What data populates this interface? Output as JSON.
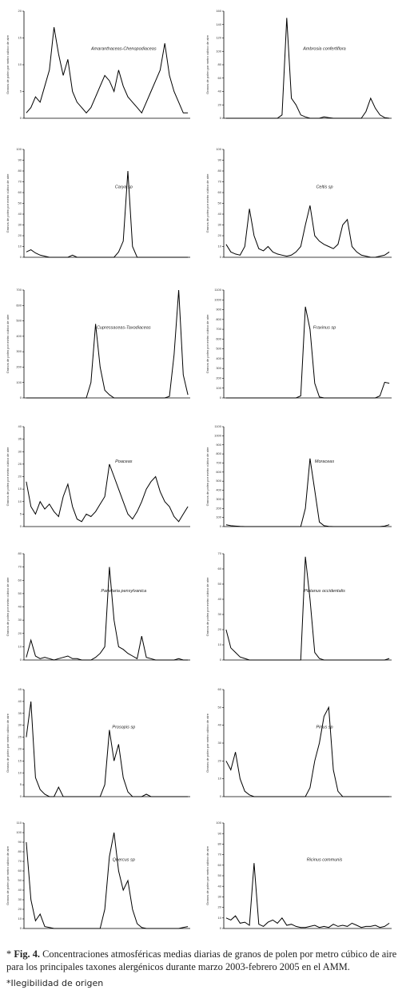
{
  "chart_data": [
    {
      "type": "line",
      "title": "Amaranthaceas-Chenopodiaceas",
      "y_label": "Granos de polen por metro cúbico de aire",
      "color": "#000000",
      "ylim": [
        0,
        20
      ],
      "yticks": [
        0,
        5,
        10,
        15,
        20
      ],
      "values": [
        1,
        2,
        4,
        3,
        6,
        9,
        17,
        12,
        8,
        11,
        5,
        3,
        2,
        1,
        2,
        4,
        6,
        8,
        7,
        5,
        9,
        6,
        4,
        3,
        2,
        1,
        3,
        5,
        7,
        9,
        14,
        8,
        5,
        3,
        1,
        1
      ]
    },
    {
      "type": "line",
      "title": "Ambrosia confertiflora",
      "y_label": "Granos de polen por metro cúbico de aire",
      "color": "#000000",
      "ylim": [
        0,
        160
      ],
      "yticks": [
        0,
        20,
        40,
        60,
        80,
        100,
        120,
        140,
        160
      ],
      "values": [
        0,
        0,
        0,
        0,
        0,
        0,
        0,
        0,
        0,
        0,
        0,
        0,
        5,
        150,
        30,
        20,
        5,
        2,
        0,
        0,
        0,
        2,
        1,
        0,
        0,
        0,
        0,
        0,
        0,
        0,
        10,
        30,
        15,
        5,
        1,
        0
      ]
    },
    {
      "type": "line",
      "title": "Carya sp",
      "y_label": "Granos de polen por metro cúbico de aire",
      "color": "#000000",
      "ylim": [
        0,
        100
      ],
      "yticks": [
        0,
        10,
        20,
        30,
        40,
        50,
        60,
        70,
        80,
        90,
        100
      ],
      "values": [
        5,
        7,
        4,
        2,
        1,
        0,
        0,
        0,
        0,
        0,
        2,
        0,
        0,
        0,
        0,
        0,
        0,
        0,
        0,
        0,
        5,
        15,
        80,
        10,
        0,
        0,
        0,
        0,
        0,
        0,
        0,
        0,
        0,
        0,
        0,
        0
      ]
    },
    {
      "type": "line",
      "title": "Celtis sp",
      "y_label": "Granos de polen por metro cúbico de aire",
      "color": "#000000",
      "ylim": [
        0,
        100
      ],
      "yticks": [
        0,
        10,
        20,
        30,
        40,
        50,
        60,
        70,
        80,
        90,
        100
      ],
      "values": [
        12,
        5,
        3,
        2,
        10,
        45,
        20,
        8,
        6,
        10,
        5,
        3,
        2,
        1,
        2,
        5,
        10,
        30,
        48,
        20,
        15,
        12,
        10,
        8,
        12,
        30,
        35,
        10,
        5,
        2,
        1,
        0,
        0,
        1,
        2,
        5
      ]
    },
    {
      "type": "line",
      "title": "Cupressaceas-Taxodiaceas",
      "y_label": "Granos de polen por metro cúbico de aire",
      "color": "#000000",
      "ylim": [
        0,
        700
      ],
      "yticks": [
        0,
        100,
        200,
        300,
        400,
        500,
        600,
        700
      ],
      "values": [
        0,
        0,
        0,
        0,
        0,
        0,
        0,
        0,
        0,
        0,
        0,
        0,
        0,
        0,
        100,
        480,
        200,
        50,
        20,
        0,
        0,
        0,
        0,
        0,
        0,
        0,
        0,
        0,
        0,
        0,
        0,
        10,
        280,
        700,
        150,
        20
      ]
    },
    {
      "type": "line",
      "title": "Fraxinus sp",
      "y_label": "Granos de polen por metro cúbico de aire",
      "color": "#000000",
      "ylim": [
        0,
        1100
      ],
      "yticks": [
        0,
        100,
        200,
        300,
        400,
        500,
        600,
        700,
        800,
        900,
        1000,
        1100
      ],
      "values": [
        0,
        0,
        0,
        0,
        0,
        0,
        0,
        0,
        0,
        0,
        0,
        0,
        0,
        0,
        0,
        0,
        20,
        930,
        700,
        150,
        10,
        0,
        0,
        0,
        0,
        0,
        0,
        0,
        0,
        0,
        0,
        0,
        0,
        20,
        160,
        150
      ]
    },
    {
      "type": "line",
      "title": "Poaceas",
      "y_label": "Granos de polen por metro cúbico de aire",
      "color": "#000000",
      "ylim": [
        0,
        40
      ],
      "yticks": [
        0,
        5,
        10,
        15,
        20,
        25,
        30,
        35,
        40
      ],
      "values": [
        18,
        8,
        5,
        10,
        7,
        9,
        6,
        4,
        12,
        17,
        8,
        3,
        2,
        5,
        4,
        6,
        9,
        12,
        25,
        20,
        15,
        10,
        5,
        3,
        6,
        10,
        15,
        18,
        20,
        14,
        10,
        8,
        4,
        2,
        5,
        8
      ]
    },
    {
      "type": "line",
      "title": "Moraceas",
      "y_label": "Granos de polen por metro cúbico de aire",
      "color": "#000000",
      "ylim": [
        0,
        1100
      ],
      "yticks": [
        0,
        100,
        200,
        300,
        400,
        500,
        600,
        700,
        800,
        900,
        1000,
        1100
      ],
      "values": [
        20,
        10,
        5,
        2,
        0,
        0,
        0,
        0,
        0,
        0,
        0,
        0,
        0,
        0,
        0,
        0,
        0,
        200,
        750,
        400,
        50,
        10,
        2,
        0,
        0,
        0,
        0,
        0,
        0,
        0,
        0,
        0,
        0,
        0,
        5,
        20
      ]
    },
    {
      "type": "line",
      "title": "Parietaria pensylvanica",
      "y_label": "Granos de polen por metro cúbico de aire",
      "color": "#000000",
      "ylim": [
        0,
        80
      ],
      "yticks": [
        0,
        10,
        20,
        30,
        40,
        50,
        60,
        70,
        80
      ],
      "values": [
        2,
        15,
        3,
        1,
        2,
        1,
        0,
        1,
        2,
        3,
        1,
        1,
        0,
        0,
        0,
        2,
        5,
        10,
        70,
        30,
        10,
        8,
        5,
        3,
        1,
        18,
        2,
        1,
        0,
        0,
        0,
        0,
        0,
        1,
        0,
        0
      ]
    },
    {
      "type": "line",
      "title": "Platanus occidentalis",
      "y_label": "Granos de polen por metro cúbico de aire",
      "color": "#000000",
      "ylim": [
        0,
        70
      ],
      "yticks": [
        0,
        10,
        20,
        30,
        40,
        50,
        60,
        70
      ],
      "values": [
        20,
        8,
        5,
        2,
        1,
        0,
        0,
        0,
        0,
        0,
        0,
        0,
        0,
        0,
        0,
        0,
        0,
        68,
        40,
        5,
        1,
        0,
        0,
        0,
        0,
        0,
        0,
        0,
        0,
        0,
        0,
        0,
        0,
        0,
        0,
        1
      ]
    },
    {
      "type": "line",
      "title": "Prosopis sp",
      "y_label": "Granos de polen por metro cúbico de aire",
      "color": "#000000",
      "ylim": [
        0,
        45
      ],
      "yticks": [
        0,
        5,
        10,
        15,
        20,
        25,
        30,
        35,
        40,
        45
      ],
      "values": [
        25,
        40,
        8,
        3,
        1,
        0,
        0,
        4,
        0,
        0,
        0,
        0,
        0,
        0,
        0,
        0,
        0,
        5,
        28,
        15,
        22,
        8,
        2,
        0,
        0,
        0,
        1,
        0,
        0,
        0,
        0,
        0,
        0,
        0,
        0,
        0
      ]
    },
    {
      "type": "line",
      "title": "Pinus sp",
      "y_label": "Granos de polen por metro cúbico de aire",
      "color": "#000000",
      "ylim": [
        0,
        60
      ],
      "yticks": [
        0,
        10,
        20,
        30,
        40,
        50,
        60
      ],
      "values": [
        20,
        15,
        25,
        10,
        3,
        1,
        0,
        0,
        0,
        0,
        0,
        0,
        0,
        0,
        0,
        0,
        0,
        0,
        5,
        20,
        30,
        45,
        50,
        15,
        3,
        0,
        0,
        0,
        0,
        0,
        0,
        0,
        0,
        0,
        0,
        0
      ]
    },
    {
      "type": "line",
      "title": "Quercus sp",
      "y_label": "Granos de polen por metro cúbico de aire",
      "color": "#000000",
      "ylim": [
        0,
        110
      ],
      "yticks": [
        0,
        10,
        20,
        30,
        40,
        50,
        60,
        70,
        80,
        90,
        100,
        110
      ],
      "values": [
        90,
        30,
        8,
        15,
        2,
        1,
        0,
        0,
        0,
        0,
        0,
        0,
        0,
        0,
        0,
        0,
        0,
        20,
        75,
        100,
        60,
        40,
        50,
        20,
        5,
        1,
        0,
        0,
        0,
        0,
        0,
        0,
        0,
        0,
        1,
        2
      ]
    },
    {
      "type": "line",
      "title": "Ricinus communis",
      "y_label": "Granos de polen por metro cúbico de aire",
      "color": "#000000",
      "ylim": [
        0,
        100
      ],
      "yticks": [
        0,
        10,
        20,
        30,
        40,
        50,
        60,
        70,
        80,
        90,
        100
      ],
      "values": [
        10,
        8,
        12,
        5,
        6,
        3,
        62,
        4,
        2,
        6,
        8,
        5,
        10,
        3,
        4,
        2,
        1,
        1,
        2,
        3,
        1,
        2,
        1,
        4,
        2,
        3,
        2,
        5,
        3,
        1,
        2,
        2,
        3,
        1,
        2,
        5
      ]
    }
  ],
  "caption": {
    "marker": "*",
    "label": "Fig. 4.",
    "text": "Concentraciones atmosféricas medias diarias de granos de polen por metro cúbico de aire para los principales taxones alergénicos durante marzo 2003-febrero 2005 en el AMM."
  },
  "note": "*Ilegibilidad de origen"
}
